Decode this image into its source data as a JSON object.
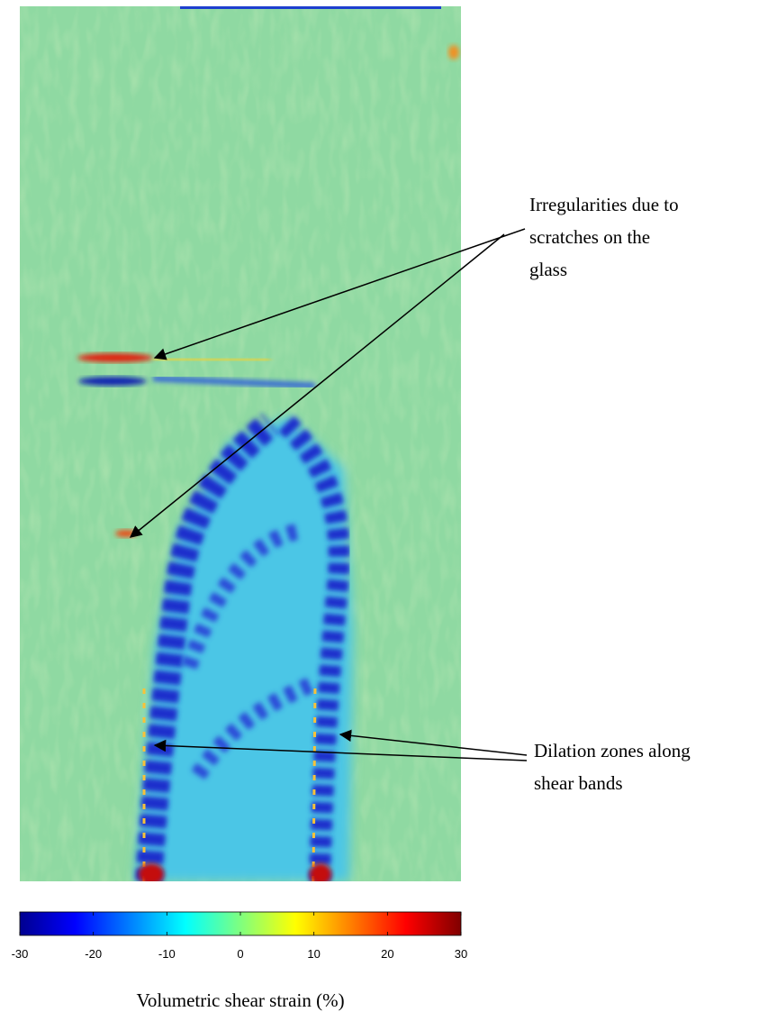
{
  "figure": {
    "annotations": [
      {
        "lines": [
          "Irregularities due to",
          "scratches on the",
          "glass"
        ]
      },
      {
        "lines": [
          "Dilation zones along",
          "shear bands"
        ]
      }
    ],
    "colorbar": {
      "colormap": "jet",
      "lim": [
        -30,
        30
      ],
      "ticks": [
        -30,
        -20,
        -10,
        0,
        10,
        20,
        30
      ],
      "label": "Volumetric shear strain (%)"
    }
  }
}
